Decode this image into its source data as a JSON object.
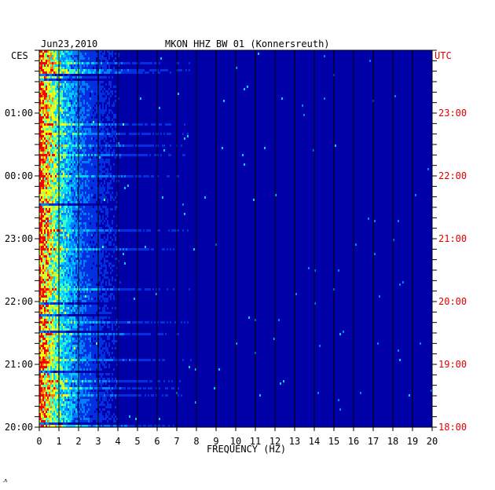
{
  "header": {
    "date": "Jun23,2010",
    "station": "MKON HHZ BW 01 (Konnersreuth)"
  },
  "axes": {
    "left_tz": "CES",
    "right_tz": "UTC",
    "xlabel": "FREQUENCY (HZ)"
  },
  "colors": {
    "background": "#0000a8",
    "grid": "#000000",
    "utc_text": "#e00000"
  },
  "chart_data": {
    "type": "heatmap",
    "title": "MKON HHZ BW 01 (Konnersreuth)",
    "date": "Jun23,2010",
    "xlabel": "FREQUENCY (HZ)",
    "x_range": [
      0,
      20
    ],
    "x_ticks": [
      "0",
      "1",
      "2",
      "3",
      "4",
      "5",
      "6",
      "7",
      "8",
      "9",
      "10",
      "11",
      "12",
      "13",
      "14",
      "15",
      "16",
      "17",
      "18",
      "19",
      "20"
    ],
    "left_axis_label": "CES",
    "left_ticks": [
      "01:00",
      "00:00",
      "23:00",
      "22:00",
      "21:00",
      "20:00"
    ],
    "right_axis_label": "UTC",
    "right_ticks": [
      "23:00",
      "22:00",
      "21:00",
      "20:00",
      "19:00",
      "18:00"
    ],
    "colormap": [
      "#0000a8",
      "#0030e0",
      "#0080ff",
      "#00d0ff",
      "#40ffc0",
      "#c0ff40",
      "#ffff00",
      "#ff8000",
      "#ff0000"
    ],
    "note_energy_peak_hz": [
      0,
      1.5
    ]
  }
}
